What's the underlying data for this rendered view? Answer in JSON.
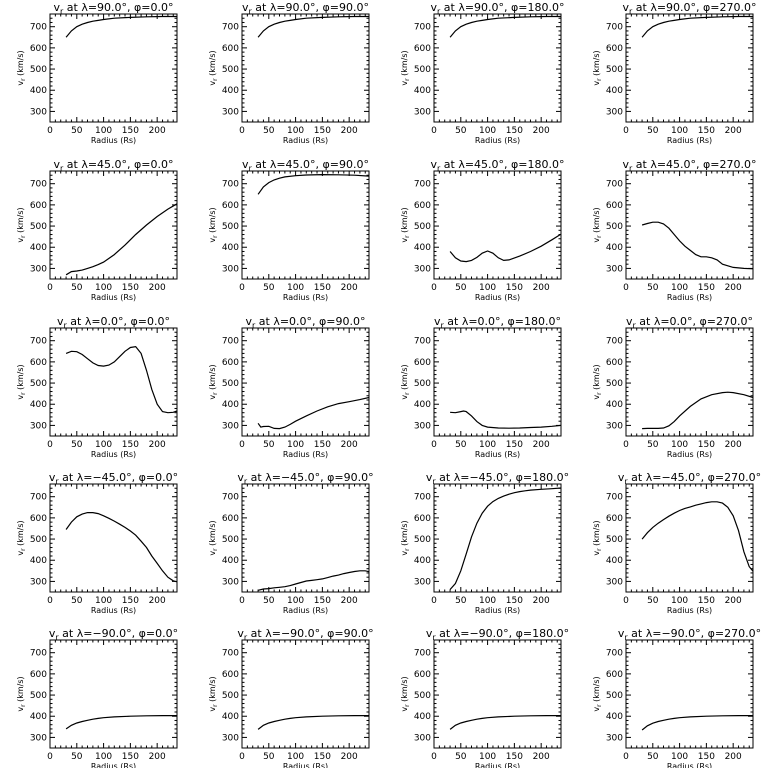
{
  "panel_titles": [
    "v_r at λ=90.0°, φ=0.0°",
    "v_r at λ=90.0°, φ=90.0°",
    "v_r at λ=90.0°, φ=180.0°",
    "v_r at λ=90.0°, φ=270.0°",
    "v_r at λ=45.0°, φ=0.0°",
    "v_r at λ=45.0°, φ=90.0°",
    "v_r at λ=45.0°, φ=180.0°",
    "v_r at λ=45.0°, φ=270.0°",
    "v_r at λ=0.0°, φ=0.0°",
    "v_r at λ=0.0°, φ=90.0°",
    "v_r at λ=0.0°, φ=180.0°",
    "v_r at λ=0.0°, φ=270.0°",
    "v_r at λ=−45.0°, φ=0.0°",
    "v_r at λ=−45.0°, φ=90.0°",
    "v_r at λ=−45.0°, φ=180.0°",
    "v_r at λ=−45.0°, φ=270.0°",
    "v_r at λ=−90.0°, φ=0.0°",
    "v_r at λ=−90.0°, φ=90.0°",
    "v_r at λ=−90.0°, φ=180.0°",
    "v_r at λ=−90.0°, φ=270.0°"
  ],
  "chart_data": {
    "type": "line",
    "layout": "5 rows x 4 columns",
    "xlabel": "Radius (Rs)",
    "ylabel": "v_r (km/s)",
    "xlim": [
      0,
      237
    ],
    "ylim": [
      250,
      760
    ],
    "xticks": [
      0,
      50,
      100,
      150,
      200
    ],
    "yticks": [
      300,
      400,
      500,
      600,
      700
    ],
    "panels": [
      {
        "lambda": 90,
        "phi": 0,
        "x": [
          30,
          40,
          50,
          60,
          70,
          80,
          90,
          100,
          120,
          150,
          180,
          210,
          237
        ],
        "y": [
          650,
          680,
          700,
          712,
          720,
          726,
          730,
          734,
          740,
          744,
          747,
          748,
          748
        ]
      },
      {
        "lambda": 90,
        "phi": 90,
        "x": [
          30,
          40,
          50,
          60,
          70,
          80,
          90,
          100,
          120,
          150,
          180,
          210,
          237
        ],
        "y": [
          650,
          680,
          700,
          712,
          720,
          726,
          730,
          734,
          740,
          744,
          747,
          748,
          748
        ]
      },
      {
        "lambda": 90,
        "phi": 180,
        "x": [
          30,
          40,
          50,
          60,
          70,
          80,
          90,
          100,
          120,
          150,
          180,
          210,
          237
        ],
        "y": [
          650,
          680,
          700,
          712,
          720,
          726,
          730,
          734,
          740,
          744,
          747,
          748,
          748
        ]
      },
      {
        "lambda": 90,
        "phi": 270,
        "x": [
          30,
          40,
          50,
          60,
          70,
          80,
          90,
          100,
          120,
          150,
          180,
          210,
          237
        ],
        "y": [
          650,
          680,
          700,
          712,
          720,
          726,
          730,
          734,
          740,
          744,
          747,
          748,
          748
        ]
      },
      {
        "lambda": 45,
        "phi": 0,
        "x": [
          30,
          40,
          50,
          60,
          70,
          80,
          90,
          100,
          120,
          140,
          160,
          180,
          200,
          220,
          237
        ],
        "y": [
          270,
          285,
          288,
          292,
          300,
          308,
          318,
          330,
          365,
          410,
          460,
          505,
          545,
          580,
          605
        ]
      },
      {
        "lambda": 45,
        "phi": 90,
        "x": [
          30,
          40,
          50,
          60,
          70,
          80,
          100,
          120,
          150,
          180,
          210,
          237
        ],
        "y": [
          650,
          685,
          705,
          718,
          726,
          732,
          738,
          741,
          743,
          742,
          740,
          736
        ]
      },
      {
        "lambda": 45,
        "phi": 180,
        "x": [
          30,
          40,
          50,
          60,
          70,
          80,
          90,
          100,
          110,
          120,
          130,
          140,
          160,
          180,
          200,
          220,
          237
        ],
        "y": [
          380,
          350,
          335,
          332,
          338,
          352,
          372,
          382,
          372,
          350,
          338,
          340,
          358,
          380,
          405,
          435,
          462
        ]
      },
      {
        "lambda": 45,
        "phi": 270,
        "x": [
          30,
          40,
          50,
          60,
          70,
          80,
          90,
          100,
          110,
          120,
          130,
          140,
          150,
          160,
          170,
          180,
          200,
          220,
          237
        ],
        "y": [
          505,
          512,
          518,
          518,
          510,
          490,
          460,
          430,
          405,
          385,
          365,
          355,
          355,
          350,
          340,
          320,
          305,
          300,
          298
        ]
      },
      {
        "lambda": 0,
        "phi": 0,
        "x": [
          30,
          40,
          50,
          60,
          70,
          80,
          90,
          100,
          110,
          120,
          130,
          140,
          150,
          160,
          170,
          180,
          190,
          200,
          210,
          220,
          230,
          237
        ],
        "y": [
          640,
          650,
          648,
          635,
          615,
          595,
          583,
          580,
          585,
          600,
          625,
          650,
          668,
          672,
          640,
          560,
          470,
          400,
          365,
          360,
          362,
          368
        ]
      },
      {
        "lambda": 0,
        "phi": 90,
        "x": [
          30,
          35,
          40,
          50,
          60,
          70,
          80,
          90,
          100,
          120,
          140,
          160,
          180,
          200,
          220,
          237
        ],
        "y": [
          310,
          292,
          295,
          296,
          286,
          285,
          292,
          305,
          320,
          345,
          368,
          388,
          403,
          412,
          422,
          432
        ]
      },
      {
        "lambda": 0,
        "phi": 180,
        "x": [
          30,
          40,
          50,
          55,
          60,
          70,
          80,
          90,
          100,
          120,
          140,
          160,
          180,
          200,
          220,
          237
        ],
        "y": [
          362,
          360,
          365,
          368,
          365,
          345,
          318,
          300,
          292,
          288,
          287,
          288,
          290,
          292,
          296,
          300
        ]
      },
      {
        "lambda": 0,
        "phi": 270,
        "x": [
          30,
          40,
          50,
          60,
          70,
          80,
          90,
          100,
          120,
          140,
          160,
          180,
          190,
          200,
          220,
          237
        ],
        "y": [
          285,
          286,
          286,
          286,
          288,
          298,
          318,
          345,
          390,
          425,
          445,
          455,
          457,
          455,
          445,
          432
        ]
      },
      {
        "lambda": -45,
        "phi": 0,
        "x": [
          30,
          40,
          50,
          60,
          70,
          80,
          90,
          100,
          110,
          120,
          130,
          140,
          150,
          160,
          170,
          180,
          190,
          200,
          210,
          220,
          230,
          237
        ],
        "y": [
          545,
          580,
          605,
          618,
          625,
          625,
          620,
          610,
          598,
          585,
          570,
          555,
          538,
          518,
          490,
          460,
          420,
          385,
          350,
          320,
          303,
          298
        ]
      },
      {
        "lambda": -45,
        "phi": 90,
        "x": [
          30,
          40,
          50,
          60,
          70,
          80,
          90,
          100,
          110,
          120,
          130,
          140,
          150,
          160,
          170,
          180,
          190,
          200,
          210,
          220,
          230,
          237
        ],
        "y": [
          258,
          264,
          266,
          270,
          272,
          275,
          280,
          288,
          295,
          302,
          305,
          308,
          312,
          318,
          325,
          330,
          337,
          342,
          347,
          350,
          350,
          346
        ]
      },
      {
        "lambda": -45,
        "phi": 180,
        "x": [
          30,
          40,
          50,
          60,
          70,
          80,
          90,
          100,
          110,
          120,
          130,
          140,
          150,
          160,
          170,
          180,
          200,
          220,
          237
        ],
        "y": [
          262,
          290,
          350,
          430,
          510,
          575,
          622,
          655,
          677,
          692,
          703,
          712,
          719,
          724,
          728,
          731,
          735,
          738,
          741
        ]
      },
      {
        "lambda": -45,
        "phi": 270,
        "x": [
          30,
          40,
          50,
          60,
          70,
          80,
          90,
          100,
          110,
          120,
          130,
          140,
          150,
          160,
          170,
          180,
          190,
          200,
          210,
          220,
          230,
          237
        ],
        "y": [
          500,
          530,
          555,
          575,
          592,
          608,
          622,
          635,
          645,
          652,
          660,
          666,
          672,
          676,
          676,
          670,
          650,
          610,
          540,
          440,
          370,
          348
        ]
      },
      {
        "lambda": -90,
        "phi": 0,
        "x": [
          30,
          40,
          50,
          60,
          70,
          80,
          90,
          100,
          120,
          150,
          180,
          210,
          237
        ],
        "y": [
          340,
          357,
          368,
          375,
          381,
          386,
          390,
          393,
          397,
          400,
          402,
          403,
          403
        ]
      },
      {
        "lambda": -90,
        "phi": 90,
        "x": [
          30,
          40,
          50,
          60,
          70,
          80,
          90,
          100,
          120,
          150,
          180,
          210,
          237
        ],
        "y": [
          338,
          357,
          368,
          375,
          381,
          386,
          390,
          393,
          397,
          400,
          402,
          403,
          403
        ]
      },
      {
        "lambda": -90,
        "phi": 180,
        "x": [
          30,
          40,
          50,
          60,
          70,
          80,
          90,
          100,
          120,
          150,
          180,
          210,
          237
        ],
        "y": [
          338,
          357,
          368,
          375,
          381,
          386,
          390,
          393,
          397,
          400,
          402,
          403,
          403
        ]
      },
      {
        "lambda": -90,
        "phi": 270,
        "x": [
          30,
          40,
          50,
          60,
          70,
          80,
          90,
          100,
          120,
          150,
          180,
          210,
          237
        ],
        "y": [
          335,
          355,
          367,
          375,
          381,
          386,
          390,
          393,
          397,
          400,
          402,
          403,
          403
        ]
      }
    ]
  }
}
